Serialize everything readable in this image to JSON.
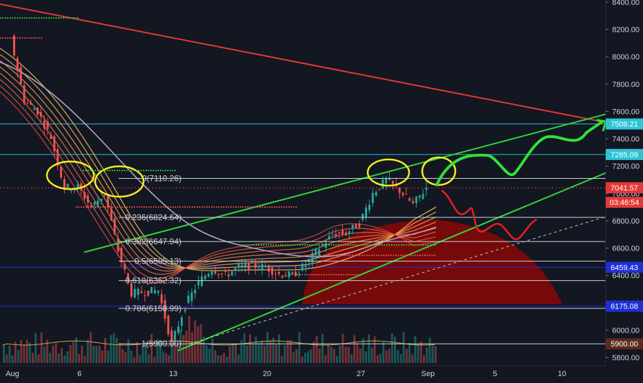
{
  "chart_data": {
    "type": "candlestick",
    "title": "",
    "xlabel": "",
    "ylabel": "",
    "ylim": [
      5735,
      8435
    ],
    "x_ticks": [
      "Aug",
      "6",
      "13",
      "20",
      "27",
      "Sep",
      "5",
      "10"
    ],
    "y_ticks": [
      "8400.00",
      "8200.00",
      "8000.00",
      "7800.00",
      "7600.00",
      "7400.00",
      "7200.00",
      "7000.00",
      "6800.00",
      "6600.00",
      "6400.00",
      "6200.00",
      "6000.00",
      "5800.00"
    ],
    "grid": false,
    "fib_levels": [
      {
        "label": "0(7110.26)",
        "value": 7110.26
      },
      {
        "label": "0.236(6824.64)",
        "value": 6824.64
      },
      {
        "label": "0.382(6647.94)",
        "value": 6647.94
      },
      {
        "label": "0.5(6505.13)",
        "value": 6505.13
      },
      {
        "label": "0.618(6362.32)",
        "value": 6362.32
      },
      {
        "label": "0.786(6158.99)",
        "value": 6158.99
      },
      {
        "label": "1(5900.00)",
        "value": 5900.0
      }
    ],
    "price_labels": [
      {
        "text": "7508.21",
        "value": 7508.21,
        "color": "#2ec4d6"
      },
      {
        "text": "7285.09",
        "value": 7285.09,
        "color": "#2ec4d6"
      },
      {
        "text": "7041.57",
        "value": 7041.57,
        "color": "#e53935"
      },
      {
        "text": "03:46:54",
        "value": 6935,
        "color": "#e53935"
      },
      {
        "text": "6459.43",
        "value": 6459.43,
        "color": "#1e2fd6"
      },
      {
        "text": "6175.08",
        "value": 6175.08,
        "color": "#1e2fd6"
      },
      {
        "text": "5900.00",
        "value": 5900.0,
        "color": "#5d2a20"
      }
    ],
    "horizontal_lines": [
      {
        "value": 7508.21,
        "color": "#26c6da"
      },
      {
        "value": 7285.09,
        "color": "#26c6da"
      },
      {
        "value": 7041.57,
        "color": "#e53935",
        "dashed": true
      },
      {
        "value": 6459.43,
        "color": "#1e2fd6"
      },
      {
        "value": 6175.08,
        "color": "#1e2fd6"
      }
    ],
    "candles_close_path": [
      [
        1,
        8130
      ],
      [
        2,
        7680
      ],
      [
        3,
        7600
      ],
      [
        4,
        7410
      ],
      [
        5,
        7040
      ],
      [
        6,
        7050
      ],
      [
        7,
        6900
      ],
      [
        8,
        7000
      ],
      [
        9,
        6580
      ],
      [
        10,
        6270
      ],
      [
        11,
        6280
      ],
      [
        12,
        6290
      ],
      [
        13,
        5900
      ],
      [
        14,
        6180
      ],
      [
        15,
        6350
      ],
      [
        16,
        6450
      ],
      [
        17,
        6400
      ],
      [
        18,
        6460
      ],
      [
        19,
        6470
      ],
      [
        20,
        6460
      ],
      [
        21,
        6410
      ],
      [
        22,
        6400
      ],
      [
        23,
        6480
      ],
      [
        24,
        6600
      ],
      [
        25,
        6700
      ],
      [
        26,
        6710
      ],
      [
        27,
        6780
      ],
      [
        28,
        7000
      ],
      [
        29,
        7100
      ],
      [
        30,
        7020
      ],
      [
        31,
        6920
      ],
      [
        32,
        7042
      ]
    ],
    "colors": {
      "background": "#131722",
      "up": "#26a69a",
      "down": "#ef5350",
      "downtrend": "#e53935",
      "channel": "#33d63a",
      "projection_up": "#33e039",
      "projection_down": "#f01d1d",
      "highlight": "#f6ee1f",
      "moving_average": "#b9a3c7",
      "arc": "#7f0a0a",
      "axis_bg": "#131722",
      "axis_text": "#d1d4dc"
    }
  }
}
